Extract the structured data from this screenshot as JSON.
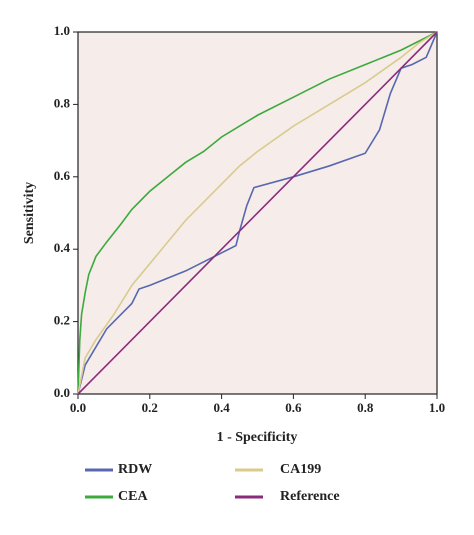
{
  "chart_data": {
    "type": "line",
    "x_label": "1 - Specificity",
    "y_label": "Sensitivity",
    "xlim": [
      0,
      1
    ],
    "ylim": [
      0,
      1
    ],
    "xticks": [
      {
        "value": 0,
        "label": "0.0"
      },
      0.2,
      0.4,
      0.6,
      0.8,
      {
        "value": 1,
        "label": "1.0"
      }
    ],
    "yticks": [
      {
        "value": 0,
        "label": "0.0"
      },
      0.2,
      0.4,
      0.6,
      0.8,
      {
        "value": 1,
        "label": "1.0"
      }
    ],
    "background": "#f6ecea",
    "series": [
      {
        "name": "RDW",
        "color": "#5868b0",
        "x": [
          0,
          0.02,
          0.05,
          0.08,
          0.12,
          0.15,
          0.17,
          0.2,
          0.3,
          0.44,
          0.45,
          0.47,
          0.49,
          0.6,
          0.7,
          0.8,
          0.84,
          0.87,
          0.9,
          0.93,
          0.97,
          1
        ],
        "values": [
          0,
          0.08,
          0.13,
          0.18,
          0.22,
          0.25,
          0.29,
          0.3,
          0.34,
          0.41,
          0.45,
          0.52,
          0.57,
          0.6,
          0.63,
          0.665,
          0.73,
          0.83,
          0.9,
          0.91,
          0.93,
          1
        ]
      },
      {
        "name": "CEA",
        "color": "#3caa3c",
        "x": [
          0,
          0.005,
          0.01,
          0.02,
          0.03,
          0.05,
          0.08,
          0.12,
          0.15,
          0.2,
          0.25,
          0.3,
          0.35,
          0.4,
          0.45,
          0.5,
          0.6,
          0.7,
          0.8,
          0.9,
          1
        ],
        "values": [
          0,
          0.15,
          0.22,
          0.28,
          0.33,
          0.38,
          0.42,
          0.47,
          0.51,
          0.56,
          0.6,
          0.64,
          0.67,
          0.71,
          0.74,
          0.77,
          0.82,
          0.87,
          0.91,
          0.95,
          1
        ]
      },
      {
        "name": "CA199",
        "color": "#d8cb8c",
        "x": [
          0,
          0.02,
          0.05,
          0.1,
          0.15,
          0.2,
          0.25,
          0.3,
          0.35,
          0.4,
          0.45,
          0.5,
          0.6,
          0.7,
          0.8,
          0.9,
          0.95,
          1
        ],
        "values": [
          0,
          0.1,
          0.15,
          0.22,
          0.3,
          0.36,
          0.42,
          0.48,
          0.53,
          0.58,
          0.63,
          0.67,
          0.74,
          0.8,
          0.86,
          0.93,
          0.97,
          1
        ]
      },
      {
        "name": "Reference",
        "color": "#8a2c7c",
        "x": [
          0,
          1
        ],
        "values": [
          0,
          1
        ]
      }
    ]
  }
}
